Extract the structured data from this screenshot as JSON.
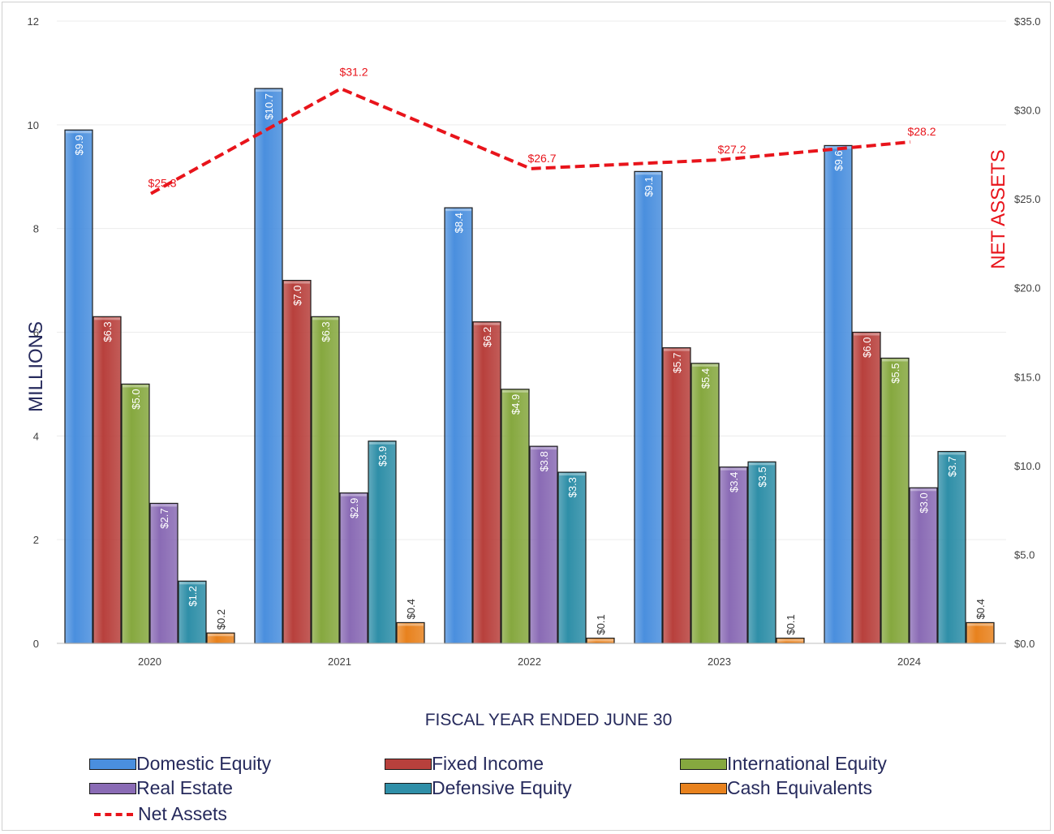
{
  "chart_data": {
    "type": "bar",
    "xlabel": "FISCAL YEAR ENDED JUNE 30",
    "ylabel": "MILLIONS",
    "y2label": "NET ASSETS",
    "categories": [
      "2020",
      "2021",
      "2022",
      "2023",
      "2024"
    ],
    "ylim": [
      0,
      12
    ],
    "yticks": [
      "0",
      "2",
      "4",
      "6",
      "8",
      "10",
      "12"
    ],
    "y2lim": [
      0,
      35
    ],
    "y2ticks": [
      "$0.0",
      "$5.0",
      "$10.0",
      "$15.0",
      "$20.0",
      "$25.0",
      "$30.0",
      "$35.0"
    ],
    "grid": true,
    "legend_position": "bottom",
    "series": [
      {
        "name": "Domestic Equity",
        "color": "#4a8fde",
        "values": [
          9.9,
          10.7,
          8.4,
          9.1,
          9.6
        ],
        "labels": [
          "$9.9",
          "$10.7",
          "$8.4",
          "$9.1",
          "$9.6"
        ]
      },
      {
        "name": "Fixed Income",
        "color": "#b8403c",
        "values": [
          6.3,
          7.0,
          6.2,
          5.7,
          6.0
        ],
        "labels": [
          "$6.3",
          "$7.0",
          "$6.2",
          "$5.7",
          "$6.0"
        ]
      },
      {
        "name": "International Equity",
        "color": "#86a83f",
        "values": [
          5.0,
          6.3,
          4.9,
          5.4,
          5.5
        ],
        "labels": [
          "$5.0",
          "$6.3",
          "$4.9",
          "$5.4",
          "$5.5"
        ]
      },
      {
        "name": "Real Estate",
        "color": "#8a6bb5",
        "values": [
          2.7,
          2.9,
          3.8,
          3.4,
          3.0
        ],
        "labels": [
          "$2.7",
          "$2.9",
          "$3.8",
          "$3.4",
          "$3.0"
        ]
      },
      {
        "name": "Defensive Equity",
        "color": "#2f8fa8",
        "values": [
          1.2,
          3.9,
          3.3,
          3.5,
          3.7
        ],
        "labels": [
          "$1.2",
          "$3.9",
          "$3.3",
          "$3.5",
          "$3.7"
        ]
      },
      {
        "name": "Cash Equivalents",
        "color": "#e8821e",
        "values": [
          0.2,
          0.4,
          0.1,
          0.1,
          0.4
        ],
        "labels": [
          "$0.2",
          "$0.4",
          "$0.1",
          "$0.1",
          "$0.4"
        ]
      }
    ],
    "line_series": {
      "name": "Net Assets",
      "color": "#e8141b",
      "axis": "right",
      "values": [
        25.3,
        31.2,
        26.7,
        27.2,
        28.2
      ],
      "labels": [
        "$25.3",
        "$31.2",
        "$26.7",
        "$27.2",
        "$28.2"
      ]
    }
  }
}
